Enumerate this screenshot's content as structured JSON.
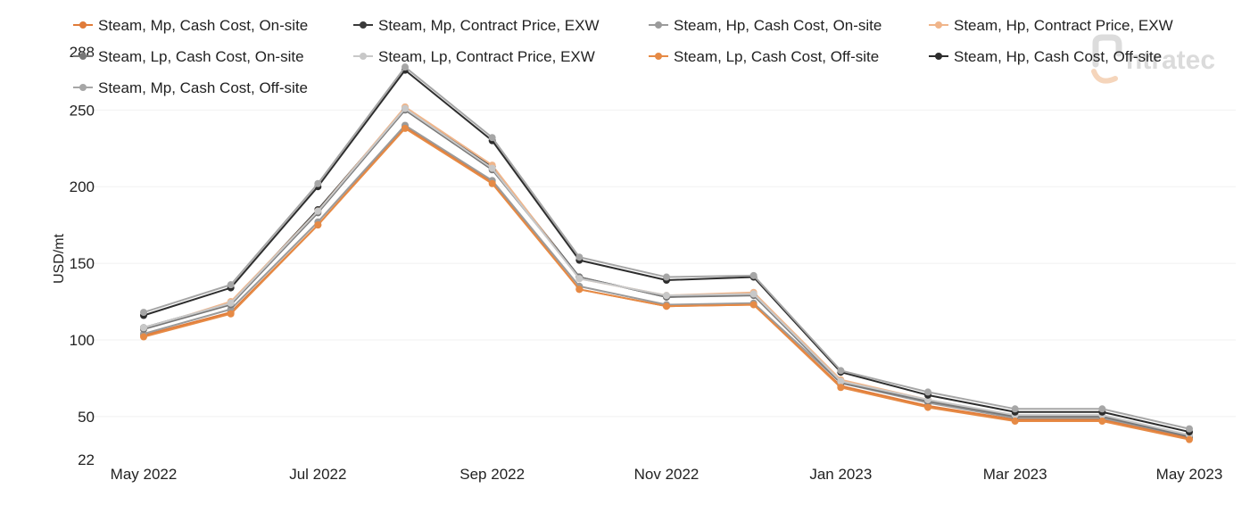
{
  "chart_data": {
    "type": "line",
    "title": "",
    "xlabel": "",
    "ylabel": "USD/mt",
    "ylim": [
      22,
      288
    ],
    "y_ticks": [
      22,
      50,
      100,
      150,
      200,
      250,
      288
    ],
    "x_tick_labels": [
      "May 2022",
      "Jul 2022",
      "Sep 2022",
      "Nov 2022",
      "Jan 2023",
      "Mar 2023",
      "May 2023"
    ],
    "x": [
      "2022-05",
      "2022-06",
      "2022-07",
      "2022-08",
      "2022-09",
      "2022-10",
      "2022-11",
      "2022-12",
      "2023-01",
      "2023-02",
      "2023-03",
      "2023-04",
      "2023-05"
    ],
    "grid": true,
    "legend_position": "top",
    "series": [
      {
        "name": "Steam, Mp, Cash Cost, On-site",
        "color": "#e07b39",
        "values": [
          103,
          118,
          175,
          239,
          203,
          133,
          122,
          123,
          70,
          57,
          48,
          48,
          36
        ]
      },
      {
        "name": "Steam, Mp, Contract Price, EXW",
        "color": "#3a3a3a",
        "values": [
          108,
          124,
          185,
          251,
          213,
          141,
          128,
          130,
          73,
          60,
          50,
          50,
          37
        ]
      },
      {
        "name": "Steam, Hp, Cash Cost, On-site",
        "color": "#9b9b9b",
        "values": [
          104,
          120,
          177,
          240,
          204,
          135,
          123,
          124,
          72,
          59,
          49,
          49,
          37
        ]
      },
      {
        "name": "Steam, Hp, Contract Price, EXW",
        "color": "#f0b58a",
        "values": [
          107,
          125,
          184,
          252,
          214,
          140,
          129,
          131,
          74,
          61,
          50,
          50,
          38
        ]
      },
      {
        "name": "Steam, Lp, Cash Cost, On-site",
        "color": "#777777",
        "values": [
          107,
          123,
          183,
          250,
          211,
          141,
          128,
          129,
          72,
          60,
          50,
          50,
          37
        ]
      },
      {
        "name": "Steam, Lp, Contract Price, EXW",
        "color": "#c8c8c8",
        "values": [
          108,
          124,
          184,
          251,
          212,
          140,
          129,
          130,
          73,
          61,
          51,
          51,
          38
        ]
      },
      {
        "name": "Steam, Lp, Cash Cost, Off-site",
        "color": "#e68a45",
        "values": [
          102,
          117,
          175,
          238,
          202,
          133,
          122,
          123,
          69,
          56,
          47,
          47,
          35
        ]
      },
      {
        "name": "Steam, Hp, Cash Cost, Off-site",
        "color": "#2d2d2d",
        "values": [
          116,
          134,
          200,
          276,
          230,
          152,
          139,
          141,
          79,
          64,
          53,
          53,
          40
        ]
      },
      {
        "name": "Steam, Mp, Cash Cost, Off-site",
        "color": "#a6a6a6",
        "values": [
          118,
          136,
          202,
          278,
          232,
          154,
          141,
          142,
          80,
          66,
          55,
          55,
          42
        ]
      }
    ]
  },
  "watermark": {
    "text": "ntratec"
  }
}
